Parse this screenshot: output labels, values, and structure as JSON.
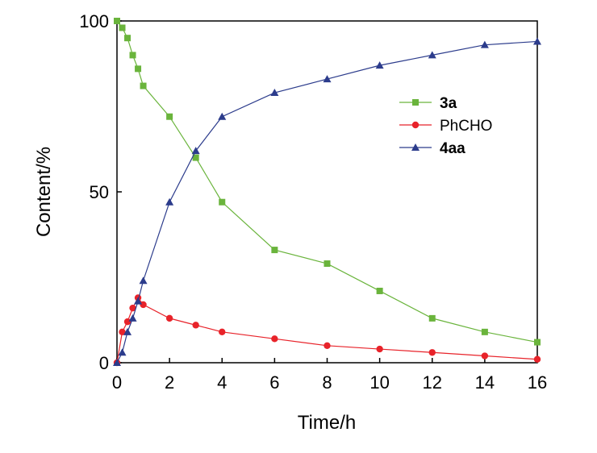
{
  "chart_data": {
    "type": "line",
    "title": "",
    "xlabel": "Time/h",
    "ylabel": "Content/%",
    "xlim": [
      0,
      16
    ],
    "ylim": [
      0,
      100
    ],
    "xticks": [
      0,
      2,
      4,
      6,
      8,
      10,
      12,
      14,
      16
    ],
    "yticks": [
      0,
      50,
      100
    ],
    "x_tick_labels": [
      "0",
      "2",
      "4",
      "6",
      "8",
      "10",
      "12",
      "14",
      "16"
    ],
    "y_tick_labels": [
      "0",
      "50",
      "100"
    ],
    "grid": false,
    "legend_position": "top-right",
    "series": [
      {
        "name": "3a",
        "color": "#6ab43c",
        "marker": "square",
        "bold": true,
        "x": [
          0,
          0.2,
          0.4,
          0.6,
          0.8,
          1,
          2,
          3,
          4,
          6,
          8,
          10,
          12,
          14,
          16
        ],
        "values": [
          100,
          98,
          95,
          90,
          86,
          81,
          72,
          60,
          47,
          33,
          29,
          21,
          13,
          9,
          6
        ]
      },
      {
        "name": "PhCHO",
        "color": "#e8232a",
        "marker": "circle",
        "bold": false,
        "x": [
          0,
          0.2,
          0.4,
          0.6,
          0.8,
          1,
          2,
          3,
          4,
          6,
          8,
          10,
          12,
          14,
          16
        ],
        "values": [
          0,
          9,
          12,
          16,
          19,
          17,
          13,
          11,
          9,
          7,
          5,
          4,
          3,
          2,
          1
        ]
      },
      {
        "name": "4aa",
        "color": "#2c3c8c",
        "marker": "triangle",
        "bold": true,
        "x": [
          0,
          0.2,
          0.4,
          0.6,
          0.8,
          1,
          2,
          3,
          4,
          6,
          8,
          10,
          12,
          14,
          16
        ],
        "values": [
          0,
          3,
          9,
          13,
          18,
          24,
          47,
          62,
          72,
          79,
          83,
          87,
          90,
          93,
          94
        ]
      }
    ]
  }
}
